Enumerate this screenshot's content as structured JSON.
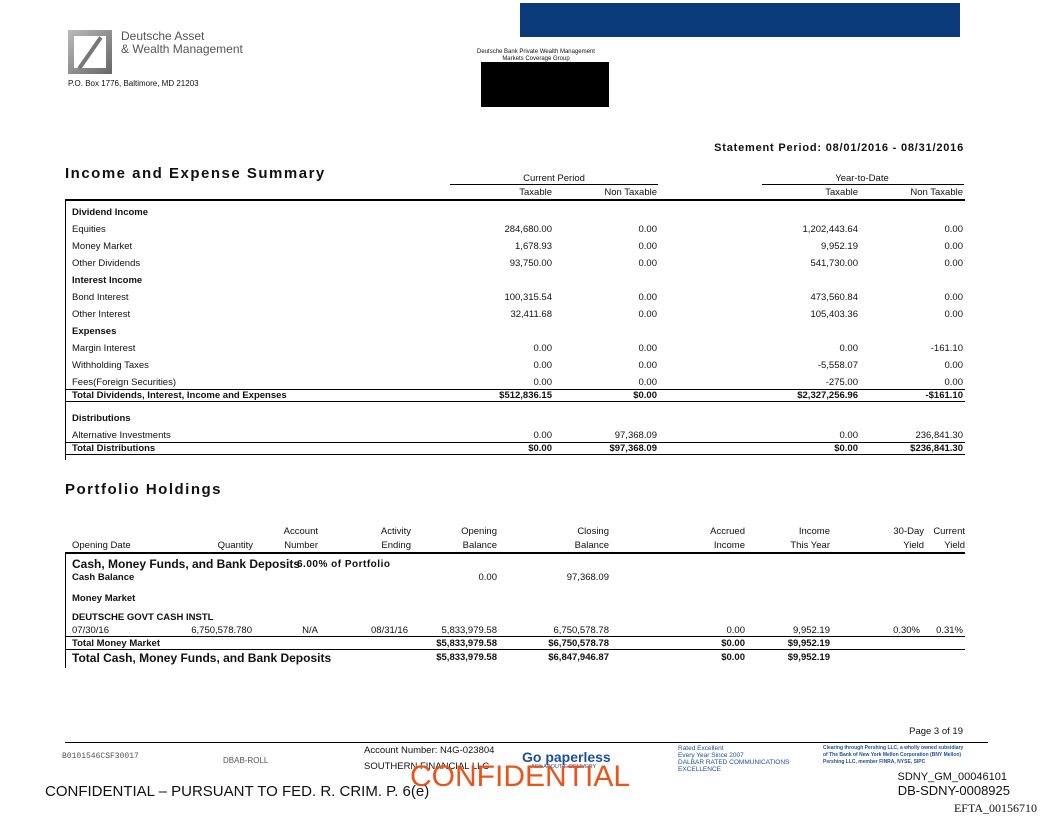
{
  "header": {
    "company_line1": "Deutsche Asset",
    "company_line2": "& Wealth Management",
    "address": "P.O. Box 1776, Baltimore, MD 21203",
    "group_line1": "Deutsche Bank Private Wealth Management",
    "group_line2": "Markets Coverage Group"
  },
  "statement_period": "Statement Period: 08/01/2016 - 08/31/2016",
  "income": {
    "title": "Income and Expense Summary",
    "groups": [
      "Current Period",
      "Year-to-Date"
    ],
    "columns": [
      "Taxable",
      "Non Taxable",
      "Taxable",
      "Non Taxable"
    ],
    "sections": [
      {
        "heading": "Dividend Income",
        "rows": [
          [
            "Equities",
            "284,680.00",
            "0.00",
            "1,202,443.64",
            "0.00"
          ],
          [
            "Money Market",
            "1,678.93",
            "0.00",
            "9,952.19",
            "0.00"
          ],
          [
            "Other Dividends",
            "93,750.00",
            "0.00",
            "541,730.00",
            "0.00"
          ]
        ]
      },
      {
        "heading": "Interest Income",
        "rows": [
          [
            "Bond Interest",
            "100,315.54",
            "0.00",
            "473,560.84",
            "0.00"
          ],
          [
            "Other Interest",
            "32,411.68",
            "0.00",
            "105,403.36",
            "0.00"
          ]
        ]
      },
      {
        "heading": "Expenses",
        "rows": [
          [
            "Margin Interest",
            "0.00",
            "0.00",
            "0.00",
            "-161.10"
          ],
          [
            "Withholding Taxes",
            "0.00",
            "0.00",
            "-5,558.07",
            "0.00"
          ],
          [
            "Fees(Foreign Securities)",
            "0.00",
            "0.00",
            "-275.00",
            "0.00"
          ]
        ],
        "total": [
          "Total Dividends, Interest, Income and Expenses",
          "$512,836.15",
          "$0.00",
          "$2,327,256.96",
          "-$161.10"
        ]
      },
      {
        "heading": "Distributions",
        "rows": [
          [
            "Alternative Investments",
            "0.00",
            "97,368.09",
            "0.00",
            "236,841.30"
          ]
        ],
        "total": [
          "Total Distributions",
          "$0.00",
          "$97,368.09",
          "$0.00",
          "$236,841.30"
        ]
      }
    ]
  },
  "portfolio": {
    "title": "Portfolio Holdings",
    "columns": [
      {
        "line2": "Opening Date"
      },
      {
        "line2": "Quantity"
      },
      {
        "line1": "Account",
        "line2": "Number"
      },
      {
        "line1": "Activity",
        "line2": "Ending"
      },
      {
        "line1": "Opening",
        "line2": "Balance"
      },
      {
        "line1": "Closing",
        "line2": "Balance"
      },
      {
        "line1": "Accrued",
        "line2": "Income"
      },
      {
        "line1": "Income",
        "line2": "This Year"
      },
      {
        "line1": "30-Day",
        "line2": "Yield"
      },
      {
        "line1": "Current",
        "line2": "Yield"
      }
    ],
    "section_heading": "Cash, Money Funds, and Bank Deposits",
    "section_pct": "6.00% of Portfolio",
    "cash_balance": {
      "label": "Cash Balance",
      "opening": "0.00",
      "closing": "97,368.09"
    },
    "subheading": "Money Market",
    "security": "DEUTSCHE GOVT CASH INSTL",
    "row": [
      "07/30/16",
      "6,750,578.780",
      "N/A",
      "08/31/16",
      "5,833,979.58",
      "6,750,578.78",
      "0.00",
      "9,952.19",
      "0.30%",
      "0.31%"
    ],
    "total_money_market": [
      "Total Money Market",
      "$5,833,979.58",
      "$6,750,578.78",
      "$0.00",
      "$9,952.19"
    ],
    "total_cash": [
      "Total Cash, Money Funds, and Bank Deposits",
      "$5,833,979.58",
      "$6,847,946.87",
      "$0.00",
      "$9,952.19"
    ]
  },
  "footer": {
    "page": "Page 3 of 19",
    "code": "B0101546CSF30017",
    "roll": "DBAB-ROLL",
    "account": "Account Number: N4G-023804",
    "firm": "SOUTHERN FINANCIAL LLC",
    "paperless": "Go paperless",
    "paperless_sub": "ASK ABOUT E-DELIVERY",
    "dalbar": [
      "Rated Excellent",
      "Every Year Since 2007",
      "DALBAR RATED COMMUNICATIONS",
      "EXCELLENCE"
    ],
    "pershing": [
      "Clearing through Pershing LLC, a wholly owned subsidiary",
      "of The Bank of New York Mellon Corporation (BNY Mellon)",
      "Pershing LLC, member FINRA, NYSE, SIPC"
    ]
  },
  "stamps": {
    "confidential": "CONFIDENTIAL",
    "notice": "CONFIDENTIAL – PURSUANT TO FED. R. CRIM. P. 6(e)",
    "id1": "SDNY_GM_00046101",
    "id2": "DB-SDNY-0008925",
    "id3": "EFTA_00156710"
  }
}
